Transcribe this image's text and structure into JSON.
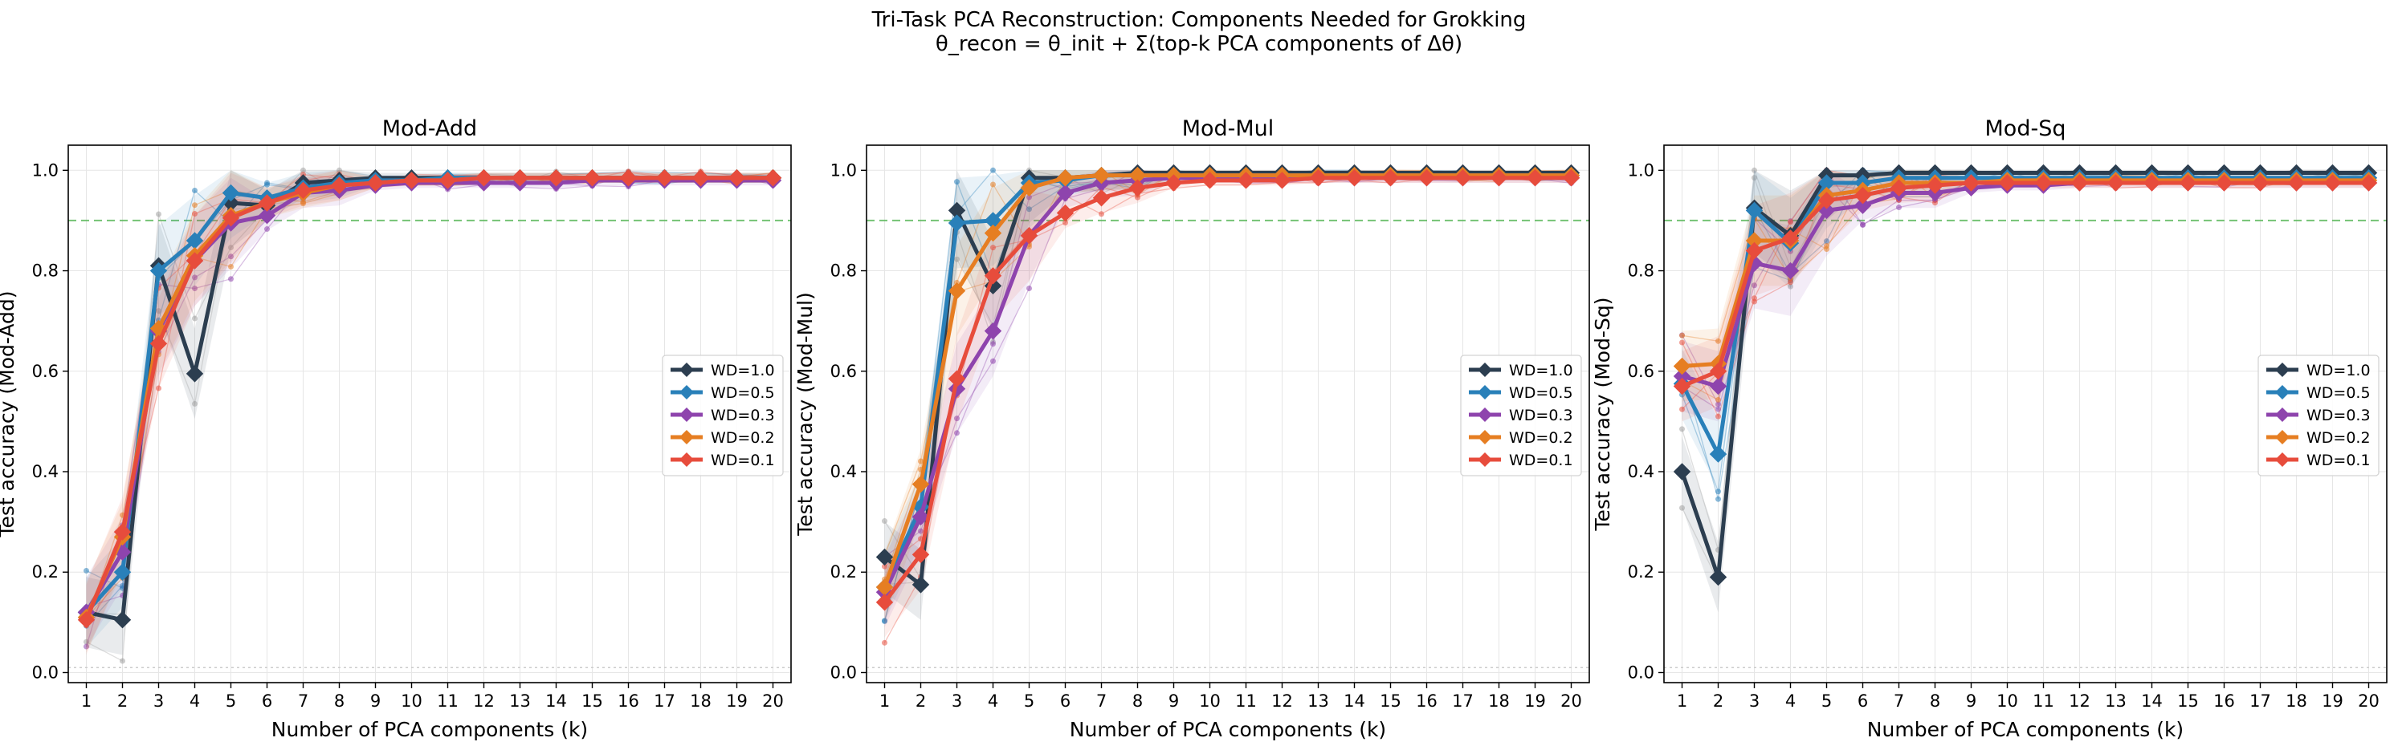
{
  "figure": {
    "title_line1": "Tri-Task PCA Reconstruction: Components Needed for Grokking",
    "title_line2": "θ_recon = θ_init + Σ(top-k PCA components of Δθ)"
  },
  "colors": {
    "WD=1.0": "#2c3e50",
    "WD=0.5": "#2980b9",
    "WD=0.3": "#8e44ad",
    "WD=0.2": "#e67e22",
    "WD=0.1": "#e74c3c",
    "threshold": "#5cb85c",
    "seeds": "#a0a0a0"
  },
  "chart_data": [
    {
      "type": "line",
      "title": "Mod-Add",
      "xlabel": "Number of PCA components (k)",
      "ylabel": "Test accuracy (Mod-Add)",
      "x": [
        1,
        2,
        3,
        4,
        5,
        6,
        7,
        8,
        9,
        10,
        11,
        12,
        13,
        14,
        15,
        16,
        17,
        18,
        19,
        20
      ],
      "ylim": [
        -0.02,
        1.05
      ],
      "yticks": [
        "0.0",
        "0.2",
        "0.4",
        "0.6",
        "0.8",
        "1.0"
      ],
      "threshold": 0.9,
      "grid": true,
      "legend_position": "center-right",
      "series": [
        {
          "name": "WD=1.0",
          "values": [
            0.12,
            0.105,
            0.81,
            0.595,
            0.935,
            0.93,
            0.975,
            0.98,
            0.985,
            0.985,
            0.985,
            0.985,
            0.985,
            0.985,
            0.985,
            0.985,
            0.985,
            0.985,
            0.985,
            0.985
          ]
        },
        {
          "name": "WD=0.5",
          "values": [
            0.12,
            0.2,
            0.8,
            0.86,
            0.955,
            0.945,
            0.965,
            0.975,
            0.98,
            0.98,
            0.985,
            0.985,
            0.985,
            0.985,
            0.985,
            0.985,
            0.985,
            0.985,
            0.985,
            0.985
          ]
        },
        {
          "name": "WD=0.3",
          "values": [
            0.12,
            0.24,
            0.68,
            0.82,
            0.895,
            0.91,
            0.955,
            0.96,
            0.97,
            0.975,
            0.975,
            0.975,
            0.975,
            0.975,
            0.98,
            0.98,
            0.98,
            0.98,
            0.98,
            0.98
          ]
        },
        {
          "name": "WD=0.2",
          "values": [
            0.11,
            0.27,
            0.685,
            0.83,
            0.91,
            0.935,
            0.955,
            0.97,
            0.975,
            0.98,
            0.98,
            0.985,
            0.985,
            0.985,
            0.985,
            0.985,
            0.985,
            0.985,
            0.985,
            0.985
          ]
        },
        {
          "name": "WD=0.1",
          "values": [
            0.105,
            0.28,
            0.655,
            0.82,
            0.905,
            0.935,
            0.96,
            0.97,
            0.975,
            0.98,
            0.98,
            0.985,
            0.985,
            0.985,
            0.985,
            0.985,
            0.985,
            0.985,
            0.985,
            0.985
          ]
        }
      ]
    },
    {
      "type": "line",
      "title": "Mod-Mul",
      "xlabel": "Number of PCA components (k)",
      "ylabel": "Test accuracy (Mod-Mul)",
      "x": [
        1,
        2,
        3,
        4,
        5,
        6,
        7,
        8,
        9,
        10,
        11,
        12,
        13,
        14,
        15,
        16,
        17,
        18,
        19,
        20
      ],
      "ylim": [
        -0.02,
        1.05
      ],
      "yticks": [
        "0.0",
        "0.2",
        "0.4",
        "0.6",
        "0.8",
        "1.0"
      ],
      "threshold": 0.9,
      "grid": true,
      "legend_position": "center-right",
      "series": [
        {
          "name": "WD=1.0",
          "values": [
            0.23,
            0.175,
            0.92,
            0.77,
            0.985,
            0.985,
            0.99,
            0.995,
            0.995,
            0.995,
            0.995,
            0.995,
            0.995,
            0.995,
            0.995,
            0.995,
            0.995,
            0.995,
            0.995,
            0.995
          ]
        },
        {
          "name": "WD=0.5",
          "values": [
            0.17,
            0.33,
            0.895,
            0.9,
            0.975,
            0.98,
            0.99,
            0.99,
            0.99,
            0.99,
            0.99,
            0.99,
            0.99,
            0.99,
            0.99,
            0.99,
            0.99,
            0.99,
            0.99,
            0.99
          ]
        },
        {
          "name": "WD=0.3",
          "values": [
            0.16,
            0.31,
            0.565,
            0.68,
            0.87,
            0.955,
            0.975,
            0.98,
            0.985,
            0.985,
            0.985,
            0.985,
            0.985,
            0.985,
            0.985,
            0.985,
            0.985,
            0.985,
            0.985,
            0.985
          ]
        },
        {
          "name": "WD=0.2",
          "values": [
            0.17,
            0.375,
            0.76,
            0.875,
            0.965,
            0.985,
            0.99,
            0.99,
            0.99,
            0.99,
            0.99,
            0.99,
            0.99,
            0.99,
            0.99,
            0.99,
            0.99,
            0.99,
            0.99,
            0.99
          ]
        },
        {
          "name": "WD=0.1",
          "values": [
            0.14,
            0.235,
            0.585,
            0.79,
            0.87,
            0.915,
            0.945,
            0.965,
            0.975,
            0.98,
            0.98,
            0.98,
            0.985,
            0.985,
            0.985,
            0.985,
            0.985,
            0.985,
            0.985,
            0.985
          ]
        }
      ]
    },
    {
      "type": "line",
      "title": "Mod-Sq",
      "xlabel": "Number of PCA components (k)",
      "ylabel": "Test accuracy (Mod-Sq)",
      "x": [
        1,
        2,
        3,
        4,
        5,
        6,
        7,
        8,
        9,
        10,
        11,
        12,
        13,
        14,
        15,
        16,
        17,
        18,
        19,
        20
      ],
      "ylim": [
        -0.02,
        1.05
      ],
      "yticks": [
        "0.0",
        "0.2",
        "0.4",
        "0.6",
        "0.8",
        "1.0"
      ],
      "threshold": 0.9,
      "grid": true,
      "legend_position": "center-right",
      "series": [
        {
          "name": "WD=1.0",
          "values": [
            0.4,
            0.19,
            0.925,
            0.87,
            0.99,
            0.99,
            0.995,
            0.995,
            0.995,
            0.995,
            0.995,
            0.995,
            0.995,
            0.995,
            0.995,
            0.995,
            0.995,
            0.995,
            0.995,
            0.995
          ]
        },
        {
          "name": "WD=0.5",
          "values": [
            0.575,
            0.435,
            0.92,
            0.855,
            0.975,
            0.975,
            0.985,
            0.985,
            0.985,
            0.985,
            0.985,
            0.985,
            0.985,
            0.985,
            0.985,
            0.985,
            0.985,
            0.985,
            0.985,
            0.985
          ]
        },
        {
          "name": "WD=0.3",
          "values": [
            0.59,
            0.57,
            0.815,
            0.8,
            0.92,
            0.93,
            0.955,
            0.955,
            0.965,
            0.97,
            0.97,
            0.975,
            0.975,
            0.975,
            0.975,
            0.975,
            0.975,
            0.975,
            0.975,
            0.975
          ]
        },
        {
          "name": "WD=0.2",
          "values": [
            0.61,
            0.615,
            0.86,
            0.86,
            0.95,
            0.96,
            0.975,
            0.975,
            0.975,
            0.98,
            0.98,
            0.98,
            0.98,
            0.98,
            0.98,
            0.98,
            0.98,
            0.98,
            0.98,
            0.98
          ]
        },
        {
          "name": "WD=0.1",
          "values": [
            0.57,
            0.6,
            0.84,
            0.865,
            0.94,
            0.95,
            0.965,
            0.97,
            0.975,
            0.975,
            0.975,
            0.975,
            0.975,
            0.975,
            0.975,
            0.975,
            0.975,
            0.975,
            0.975,
            0.975
          ]
        }
      ]
    }
  ]
}
